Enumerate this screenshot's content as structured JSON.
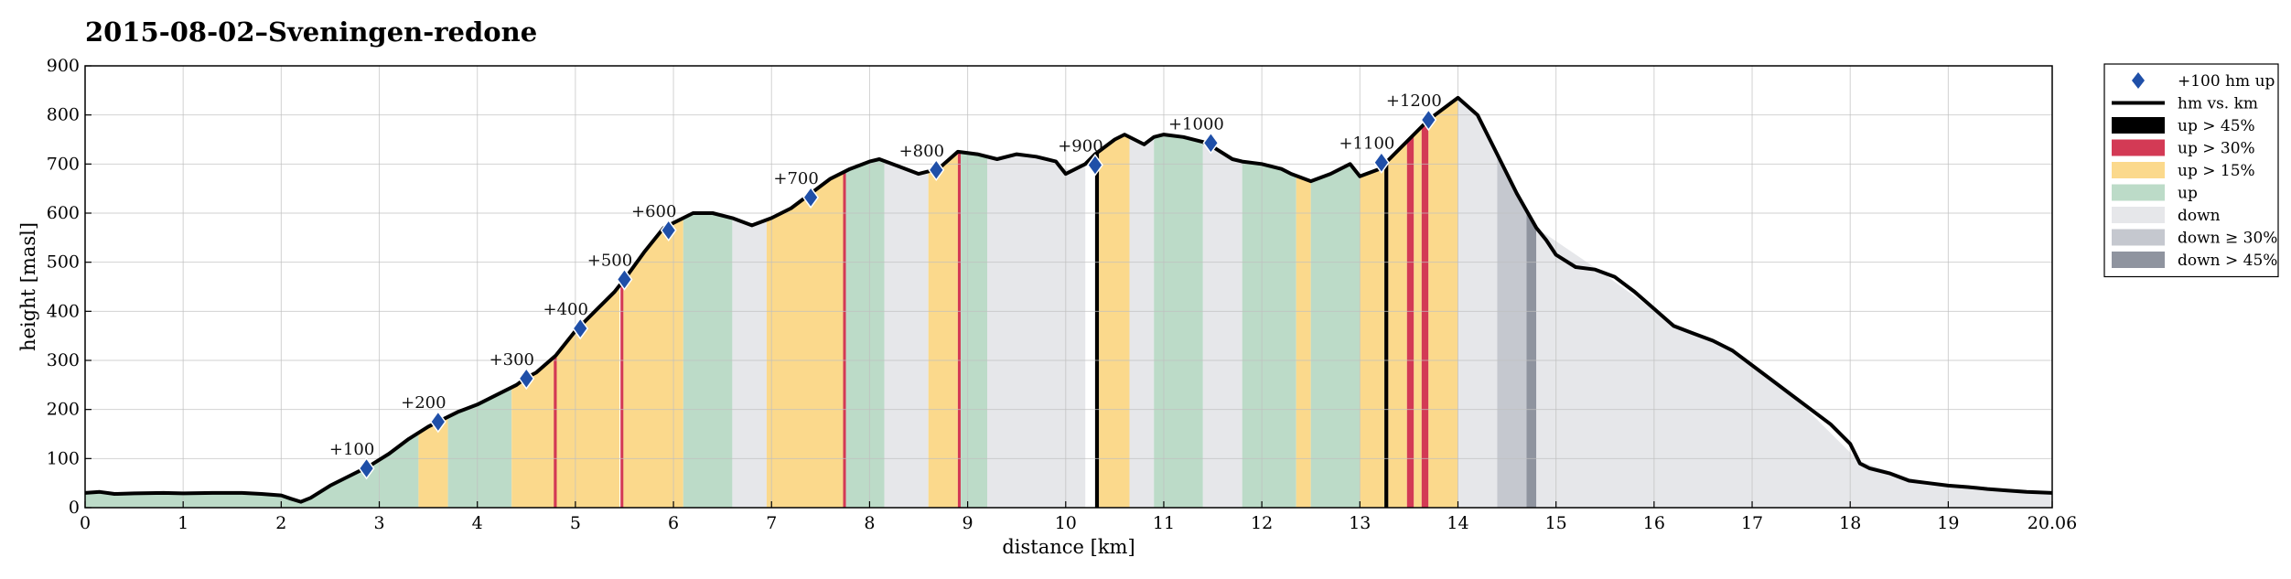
{
  "chart_data": {
    "type": "area",
    "title": "2015-08-02–Sveningen-redone",
    "xlabel": "distance [km]",
    "ylabel": "height [masl]",
    "xlim": [
      0,
      20.06
    ],
    "ylim": [
      0,
      900
    ],
    "x_ticks": [
      "0",
      "1",
      "2",
      "3",
      "4",
      "5",
      "6",
      "7",
      "8",
      "9",
      "10",
      "11",
      "12",
      "13",
      "14",
      "15",
      "16",
      "17",
      "18",
      "19",
      "20.06"
    ],
    "y_ticks": [
      "0",
      "100",
      "200",
      "300",
      "400",
      "500",
      "600",
      "700",
      "800",
      "900"
    ],
    "grid": true,
    "legend_position": "outside-right",
    "legend": [
      {
        "label": "+100 hm up",
        "kind": "marker",
        "color": "#1f4fa8"
      },
      {
        "label": "hm vs. km",
        "kind": "line",
        "color": "#000000"
      },
      {
        "label": "up > 45%",
        "kind": "patch",
        "color": "#000000"
      },
      {
        "label": "up > 30%",
        "kind": "patch",
        "color": "#d33a55"
      },
      {
        "label": "up > 15%",
        "kind": "patch",
        "color": "#fbd98c"
      },
      {
        "label": "up",
        "kind": "patch",
        "color": "#bcdbc8"
      },
      {
        "label": "down",
        "kind": "patch",
        "color": "#e6e7ea"
      },
      {
        "label": "down ≥ 30%",
        "kind": "patch",
        "color": "#c5c8cf"
      },
      {
        "label": "down > 45%",
        "kind": "patch",
        "color": "#8f949f"
      }
    ],
    "series": [
      {
        "name": "hm vs. km",
        "x": [
          0,
          0.15,
          0.3,
          0.5,
          0.8,
          1.0,
          1.3,
          1.6,
          1.8,
          2.0,
          2.1,
          2.2,
          2.3,
          2.5,
          2.7,
          2.9,
          3.1,
          3.3,
          3.5,
          3.6,
          3.8,
          4.0,
          4.2,
          4.4,
          4.5,
          4.6,
          4.8,
          5.0,
          5.2,
          5.4,
          5.5,
          5.7,
          5.9,
          6.0,
          6.2,
          6.4,
          6.6,
          6.8,
          7.0,
          7.2,
          7.4,
          7.6,
          7.8,
          8.0,
          8.1,
          8.3,
          8.5,
          8.7,
          8.9,
          9.1,
          9.3,
          9.5,
          9.7,
          9.9,
          10.0,
          10.2,
          10.3,
          10.5,
          10.6,
          10.8,
          10.9,
          11.0,
          11.2,
          11.4,
          11.5,
          11.7,
          11.8,
          12.0,
          12.2,
          12.3,
          12.5,
          12.7,
          12.9,
          13.0,
          13.2,
          13.3,
          13.5,
          13.7,
          13.9,
          14.0,
          14.2,
          14.4,
          14.6,
          14.8,
          14.9,
          15.0,
          15.2,
          15.4,
          15.6,
          15.8,
          16.0,
          16.2,
          16.4,
          16.6,
          16.8,
          17.0,
          17.2,
          17.4,
          17.6,
          17.8,
          18.0,
          18.1,
          18.2,
          18.4,
          18.6,
          18.8,
          19.0,
          19.2,
          19.4,
          19.6,
          19.8,
          20.06
        ],
        "y": [
          30,
          32,
          28,
          29,
          30,
          29,
          30,
          30,
          28,
          25,
          18,
          12,
          20,
          45,
          65,
          85,
          110,
          140,
          165,
          175,
          195,
          210,
          230,
          250,
          265,
          275,
          310,
          360,
          400,
          440,
          465,
          520,
          570,
          580,
          600,
          600,
          590,
          575,
          590,
          610,
          640,
          670,
          690,
          705,
          710,
          695,
          680,
          690,
          725,
          720,
          710,
          720,
          715,
          705,
          680,
          700,
          720,
          750,
          760,
          740,
          755,
          760,
          755,
          745,
          735,
          710,
          705,
          700,
          690,
          680,
          665,
          680,
          700,
          675,
          690,
          710,
          750,
          790,
          820,
          835,
          800,
          720,
          640,
          570,
          545,
          515,
          490,
          485,
          470,
          440,
          405,
          370,
          355,
          340,
          320,
          290,
          260,
          230,
          200,
          170,
          130,
          90,
          80,
          70,
          55,
          50,
          45,
          42,
          38,
          35,
          32,
          30
        ]
      }
    ],
    "markers": [
      {
        "label": "+100",
        "x": 2.87,
        "y": 80
      },
      {
        "label": "+200",
        "x": 3.6,
        "y": 175
      },
      {
        "label": "+300",
        "x": 4.5,
        "y": 263
      },
      {
        "label": "+400",
        "x": 5.05,
        "y": 365
      },
      {
        "label": "+500",
        "x": 5.5,
        "y": 465
      },
      {
        "label": "+600",
        "x": 5.95,
        "y": 565
      },
      {
        "label": "+700",
        "x": 7.4,
        "y": 632
      },
      {
        "label": "+800",
        "x": 8.68,
        "y": 688
      },
      {
        "label": "+900",
        "x": 10.3,
        "y": 698
      },
      {
        "label": "+1000",
        "x": 11.48,
        "y": 743
      },
      {
        "label": "+1100",
        "x": 13.22,
        "y": 703
      },
      {
        "label": "+1200",
        "x": 13.7,
        "y": 790
      }
    ],
    "slope_bands": [
      {
        "class": "up",
        "from": 0.0,
        "to": 2.2
      },
      {
        "class": "up",
        "from": 2.2,
        "to": 3.4
      },
      {
        "class": "up > 15%",
        "from": 3.4,
        "to": 3.7
      },
      {
        "class": "up",
        "from": 3.7,
        "to": 4.35
      },
      {
        "class": "up > 15%",
        "from": 4.35,
        "to": 4.8
      },
      {
        "class": "up > 30%",
        "from": 4.78,
        "to": 4.81
      },
      {
        "class": "up > 15%",
        "from": 4.81,
        "to": 5.45
      },
      {
        "class": "up > 30%",
        "from": 5.46,
        "to": 5.49
      },
      {
        "class": "up > 15%",
        "from": 5.49,
        "to": 6.1
      },
      {
        "class": "up",
        "from": 6.1,
        "to": 6.6
      },
      {
        "class": "down",
        "from": 6.6,
        "to": 6.95
      },
      {
        "class": "up > 15%",
        "from": 6.95,
        "to": 7.75
      },
      {
        "class": "up > 30%",
        "from": 7.73,
        "to": 7.76
      },
      {
        "class": "up",
        "from": 7.76,
        "to": 8.15
      },
      {
        "class": "down",
        "from": 8.15,
        "to": 8.6
      },
      {
        "class": "up > 15%",
        "from": 8.6,
        "to": 8.9
      },
      {
        "class": "up > 30%",
        "from": 8.9,
        "to": 8.93
      },
      {
        "class": "up",
        "from": 8.93,
        "to": 9.2
      },
      {
        "class": "down",
        "from": 9.2,
        "to": 10.2
      },
      {
        "class": "up > 45%",
        "from": 10.3,
        "to": 10.34
      },
      {
        "class": "up > 15%",
        "from": 10.34,
        "to": 10.65
      },
      {
        "class": "down",
        "from": 10.65,
        "to": 10.9
      },
      {
        "class": "up",
        "from": 10.9,
        "to": 11.4
      },
      {
        "class": "down",
        "from": 11.4,
        "to": 11.8
      },
      {
        "class": "up",
        "from": 11.8,
        "to": 12.35
      },
      {
        "class": "up > 15%",
        "from": 12.35,
        "to": 12.5
      },
      {
        "class": "up",
        "from": 12.5,
        "to": 13.0
      },
      {
        "class": "up > 15%",
        "from": 13.0,
        "to": 13.25
      },
      {
        "class": "up > 45%",
        "from": 13.25,
        "to": 13.29
      },
      {
        "class": "up > 15%",
        "from": 13.29,
        "to": 13.48
      },
      {
        "class": "up > 30%",
        "from": 13.48,
        "to": 13.55
      },
      {
        "class": "up > 15%",
        "from": 13.55,
        "to": 13.63
      },
      {
        "class": "up > 30%",
        "from": 13.63,
        "to": 13.7
      },
      {
        "class": "up > 15%",
        "from": 13.7,
        "to": 14.0
      },
      {
        "class": "down",
        "from": 14.0,
        "to": 14.4
      },
      {
        "class": "down ≥ 30%",
        "from": 14.4,
        "to": 14.7
      },
      {
        "class": "down > 45%",
        "from": 14.7,
        "to": 14.8
      },
      {
        "class": "down",
        "from": 14.8,
        "to": 20.06
      }
    ]
  }
}
